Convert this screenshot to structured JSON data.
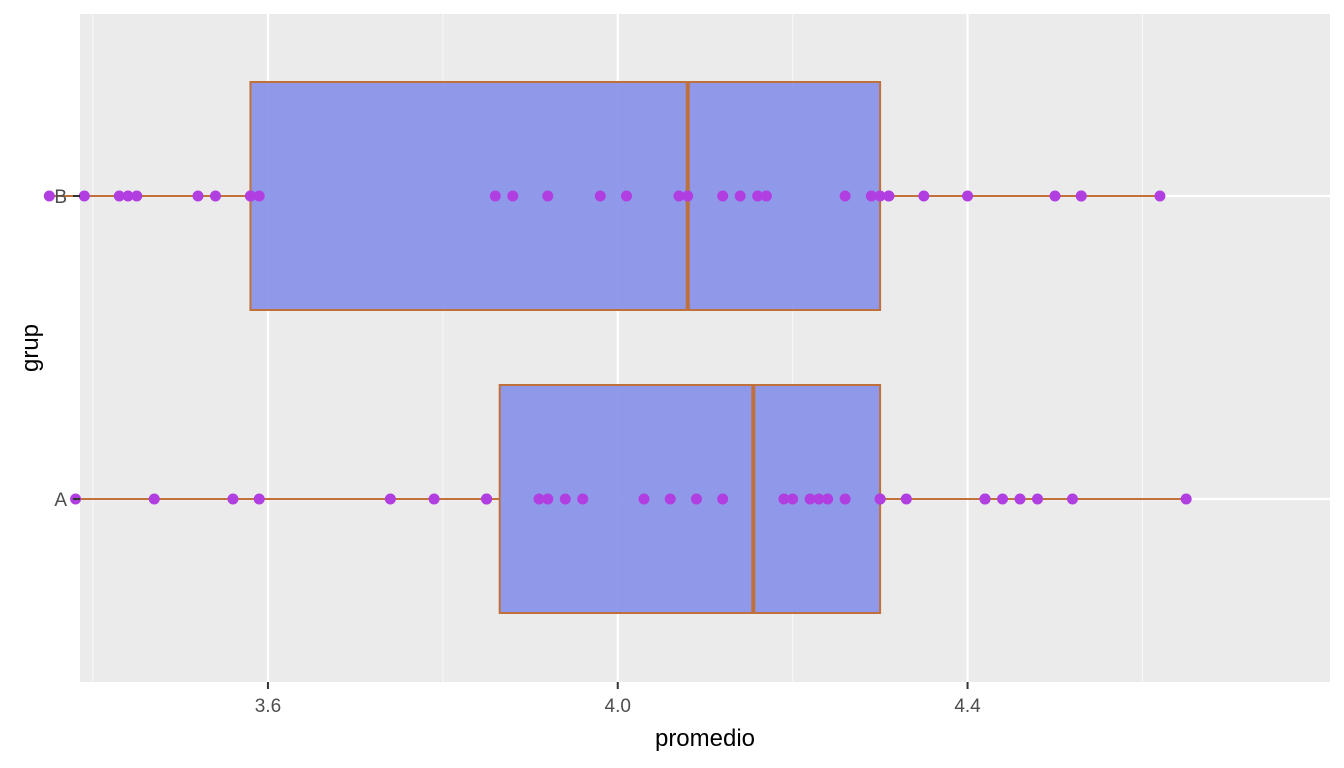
{
  "chart_data": {
    "type": "boxplot",
    "orientation": "horizontal",
    "xlabel": "promedio",
    "ylabel": "grup",
    "xlim": [
      3.35,
      4.68
    ],
    "x_ticks": [
      3.6,
      4.0,
      4.4
    ],
    "x_tick_labels": [
      "3.6",
      "4.0",
      "4.4"
    ],
    "grid": true,
    "legend": "none",
    "colors": {
      "panel": "#ebebeb",
      "grid": "#ffffff",
      "box_fill": "#8891e8",
      "box_outline": "#c0703a",
      "points": "#b03ee0"
    },
    "groups": [
      {
        "name": "A",
        "box": {
          "whisker_low": 3.38,
          "q1": 3.865,
          "median": 4.155,
          "q3": 4.3,
          "whisker_high": 4.65
        },
        "points": [
          3.38,
          3.47,
          3.56,
          3.59,
          3.74,
          3.79,
          3.85,
          3.85,
          3.91,
          3.92,
          3.94,
          3.96,
          4.03,
          4.06,
          4.09,
          4.12,
          4.19,
          4.2,
          4.22,
          4.23,
          4.24,
          4.26,
          4.3,
          4.3,
          4.33,
          4.42,
          4.42,
          4.44,
          4.46,
          4.48,
          4.52,
          4.65
        ]
      },
      {
        "name": "B",
        "box": {
          "whisker_low": 3.35,
          "q1": 3.58,
          "median": 4.08,
          "q3": 4.3,
          "whisker_high": 4.62
        },
        "points": [
          3.35,
          3.39,
          3.43,
          3.44,
          3.45,
          3.52,
          3.54,
          3.58,
          3.58,
          3.59,
          3.86,
          3.88,
          3.92,
          3.98,
          4.01,
          4.07,
          4.08,
          4.12,
          4.14,
          4.16,
          4.17,
          4.26,
          4.29,
          4.3,
          4.31,
          4.31,
          4.35,
          4.4,
          4.5,
          4.53,
          4.53,
          4.62
        ]
      }
    ]
  }
}
